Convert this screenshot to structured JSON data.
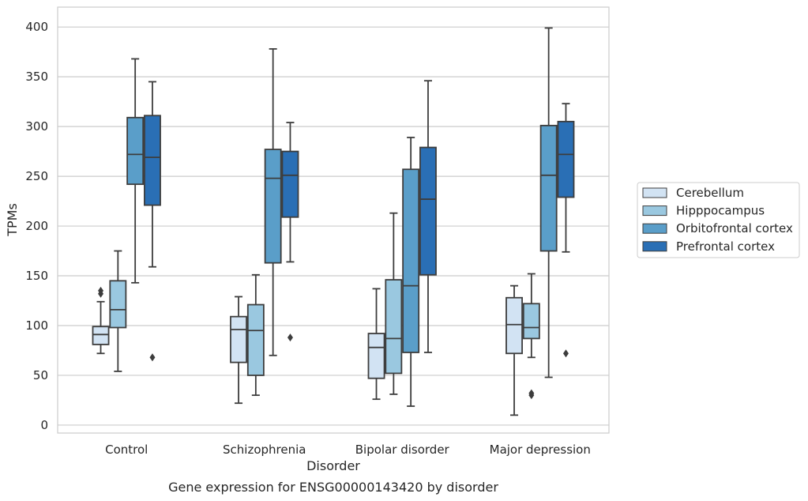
{
  "caption": "Gene expression for ENSG00000143420 by disorder",
  "chart_data": {
    "type": "box",
    "xlabel": "Disorder",
    "ylabel": "TPMs",
    "ylim": [
      -8,
      420
    ],
    "yticks": [
      0,
      50,
      100,
      150,
      200,
      250,
      300,
      350,
      400
    ],
    "grid": "horizontal",
    "legend_position": "right",
    "categories": [
      "Control",
      "Schizophrenia",
      "Bipolar disorder",
      "Major depression"
    ],
    "series": [
      {
        "name": "Cerebellum",
        "color": "#d2e3f3",
        "boxes": [
          {
            "whisker_low": 72,
            "q1": 81,
            "median": 91,
            "q3": 99,
            "whisker_high": 124,
            "outliers": [
              132,
              135
            ]
          },
          {
            "whisker_low": 22,
            "q1": 63,
            "median": 96,
            "q3": 109,
            "whisker_high": 129,
            "outliers": []
          },
          {
            "whisker_low": 26,
            "q1": 47,
            "median": 78,
            "q3": 92,
            "whisker_high": 137,
            "outliers": []
          },
          {
            "whisker_low": 10,
            "q1": 72,
            "median": 101,
            "q3": 128,
            "whisker_high": 140,
            "outliers": []
          }
        ]
      },
      {
        "name": "Hipppocampus",
        "color": "#9ac8e0",
        "boxes": [
          {
            "whisker_low": 54,
            "q1": 98,
            "median": 116,
            "q3": 145,
            "whisker_high": 175,
            "outliers": []
          },
          {
            "whisker_low": 30,
            "q1": 50,
            "median": 95,
            "q3": 121,
            "whisker_high": 151,
            "outliers": []
          },
          {
            "whisker_low": 31,
            "q1": 52,
            "median": 87,
            "q3": 146,
            "whisker_high": 213,
            "outliers": []
          },
          {
            "whisker_low": 68,
            "q1": 87,
            "median": 98,
            "q3": 122,
            "whisker_high": 152,
            "outliers": [
              30,
              32
            ]
          }
        ]
      },
      {
        "name": "Orbitofrontal cortex",
        "color": "#5a9ec9",
        "boxes": [
          {
            "whisker_low": 143,
            "q1": 242,
            "median": 272,
            "q3": 309,
            "whisker_high": 368,
            "outliers": []
          },
          {
            "whisker_low": 70,
            "q1": 163,
            "median": 248,
            "q3": 277,
            "whisker_high": 378,
            "outliers": []
          },
          {
            "whisker_low": 19,
            "q1": 73,
            "median": 140,
            "q3": 257,
            "whisker_high": 289,
            "outliers": []
          },
          {
            "whisker_low": 48,
            "q1": 175,
            "median": 251,
            "q3": 301,
            "whisker_high": 399,
            "outliers": []
          }
        ]
      },
      {
        "name": "Prefrontal cortex",
        "color": "#2a6fb5",
        "boxes": [
          {
            "whisker_low": 159,
            "q1": 221,
            "median": 269,
            "q3": 311,
            "whisker_high": 345,
            "outliers": [
              68
            ]
          },
          {
            "whisker_low": 164,
            "q1": 209,
            "median": 251,
            "q3": 275,
            "whisker_high": 304,
            "outliers": [
              88
            ]
          },
          {
            "whisker_low": 73,
            "q1": 151,
            "median": 227,
            "q3": 279,
            "whisker_high": 346,
            "outliers": []
          },
          {
            "whisker_low": 174,
            "q1": 229,
            "median": 272,
            "q3": 305,
            "whisker_high": 323,
            "outliers": [
              72
            ]
          }
        ]
      }
    ]
  }
}
